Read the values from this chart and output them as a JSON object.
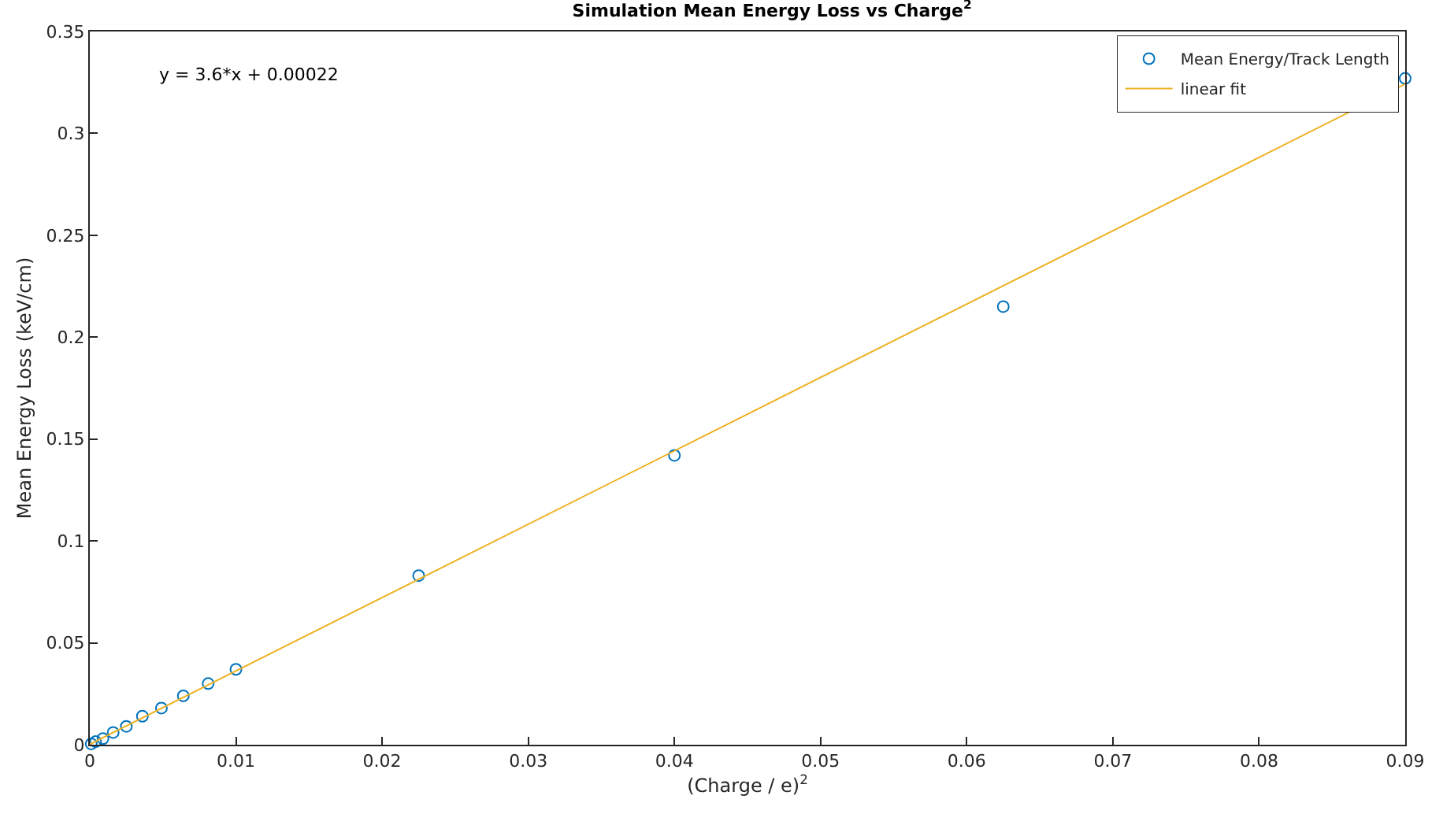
{
  "chart_data": {
    "type": "scatter",
    "title": "Simulation Mean Energy Loss vs Charge$^{2}$",
    "xlabel": "(Charge / e)$^{2}$",
    "ylabel": "Mean Energy Loss (keV/cm)",
    "annotations": [
      "y = 3.6*x + 0.00022"
    ],
    "x": [
      0.0001,
      0.0004,
      0.0009,
      0.0016,
      0.0025,
      0.0036,
      0.0049,
      0.0064,
      0.0081,
      0.01,
      0.0225,
      0.04,
      0.0625,
      0.09
    ],
    "series": [
      {
        "name": "Mean Energy/Track Length",
        "color": "#0072bd",
        "marker": "circle",
        "values": [
          0.0004,
          0.0015,
          0.003,
          0.006,
          0.009,
          0.014,
          0.018,
          0.024,
          0.03,
          0.037,
          0.083,
          0.142,
          0.215,
          0.327
        ]
      },
      {
        "name": "linear fit",
        "type": "line",
        "color": "#edb120",
        "marker": "none",
        "line_style": "solid",
        "x": [
          0,
          0.09
        ],
        "values": [
          0.00022,
          0.32422
        ]
      }
    ],
    "xlim": [
      0,
      0.09
    ],
    "xticks": [
      0,
      0.01,
      0.02,
      0.03,
      0.04,
      0.05,
      0.06,
      0.07,
      0.08,
      0.09
    ],
    "ylim": [
      0,
      0.35
    ],
    "yticks": [
      0,
      0.05,
      0.1,
      0.15,
      0.2,
      0.25,
      0.3,
      0.35
    ],
    "grid": false,
    "legend": "top right"
  }
}
